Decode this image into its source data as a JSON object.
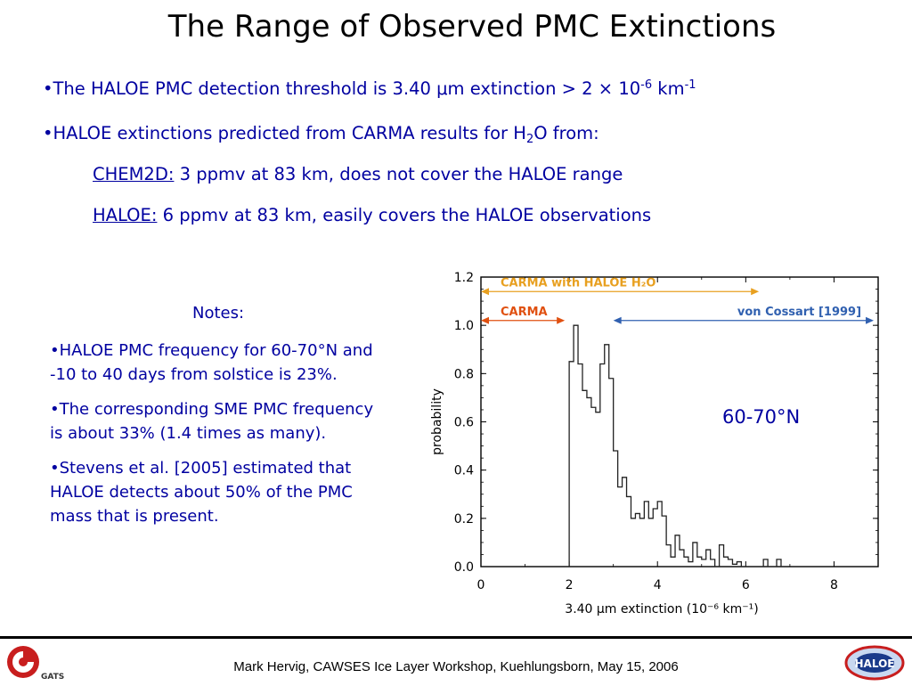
{
  "title": "The Range of Observed PMC Extinctions",
  "bullets": {
    "b1": {
      "pre": "•The HALOE PMC detection threshold is 3.40 ",
      "mu": "μ",
      "m_ext": "m extinction > 2 ",
      "times": "×",
      "ten": " 10",
      "exp1": "-6",
      "km": " km",
      "exp2": "-1"
    },
    "b2": {
      "pre": "•HALOE extinctions predicted from CARMA results for H",
      "sub": "2",
      "post": "O from:"
    },
    "b3": {
      "label": "CHEM2D:",
      "text": "  3 ppmv at 83 km,  does not cover the HALOE range"
    },
    "b4": {
      "label": "HALOE:",
      "text": "  6 ppmv at 83 km, easily covers the HALOE observations"
    }
  },
  "notes": {
    "title": "Notes:",
    "items": [
      "•HALOE PMC frequency for 60-70°N and -10 to 40 days from solstice is 23%.",
      "•The corresponding SME PMC frequency is about 33%  (1.4 times as many).",
      "•Stevens et al. [2005] estimated that HALOE detects about 50% of the PMC mass that is present."
    ]
  },
  "chart_label": "60-70°N",
  "footer": "Mark Hervig, CAWSES Ice Layer Workshop, Kuehlungsborn, May 15, 2006",
  "logos": {
    "left_text": "GATS",
    "right_text": "HALOE"
  },
  "colors": {
    "text_blue": "#0000a0",
    "carma_h2o": "#e8a020",
    "carma": "#e05010",
    "cossart": "#3060b0"
  },
  "chart_data": {
    "type": "line",
    "step": true,
    "xlabel": "3.40 μm extinction (10⁻⁶ km⁻¹)",
    "ylabel": "probability",
    "xlim": [
      0,
      9
    ],
    "ylim": [
      0,
      1.2
    ],
    "xticks": [
      "0",
      "2",
      "4",
      "6",
      "8"
    ],
    "yticks": [
      "0.0",
      "0.2",
      "0.4",
      "0.6",
      "0.8",
      "1.0",
      "1.2"
    ],
    "x": [
      1.95,
      2.05,
      2.15,
      2.25,
      2.35,
      2.45,
      2.55,
      2.65,
      2.75,
      2.85,
      2.95,
      3.05,
      3.15,
      3.25,
      3.35,
      3.45,
      3.55,
      3.65,
      3.75,
      3.85,
      3.95,
      4.05,
      4.15,
      4.25,
      4.35,
      4.45,
      4.55,
      4.65,
      4.75,
      4.85,
      4.95,
      5.05,
      5.15,
      5.25,
      5.35,
      5.45,
      5.55,
      5.65,
      5.75,
      5.85,
      5.95,
      6.05,
      6.15,
      6.25,
      6.35,
      6.45,
      6.55,
      6.65,
      6.75
    ],
    "y": [
      0.0,
      0.85,
      1.0,
      0.84,
      0.73,
      0.7,
      0.66,
      0.64,
      0.84,
      0.92,
      0.78,
      0.48,
      0.33,
      0.37,
      0.29,
      0.2,
      0.22,
      0.2,
      0.27,
      0.2,
      0.24,
      0.27,
      0.21,
      0.09,
      0.04,
      0.13,
      0.07,
      0.04,
      0.02,
      0.1,
      0.04,
      0.03,
      0.07,
      0.03,
      0.0,
      0.09,
      0.04,
      0.03,
      0.01,
      0.02,
      0.0,
      0.0,
      0.0,
      0.0,
      0.0,
      0.03,
      0.0,
      0.0,
      0.03
    ],
    "annotations": [
      {
        "text": "CARMA with HALOE H₂O",
        "x0": 0,
        "x1": 6.3,
        "y": 1.14,
        "color": "#e8a020"
      },
      {
        "text": "CARMA",
        "x0": 0,
        "x1": 1.9,
        "y": 1.02,
        "color": "#e05010"
      },
      {
        "text": "von Cossart [1999]",
        "x0": 3.0,
        "x1": 8.9,
        "y": 1.02,
        "color": "#3060b0"
      }
    ]
  }
}
